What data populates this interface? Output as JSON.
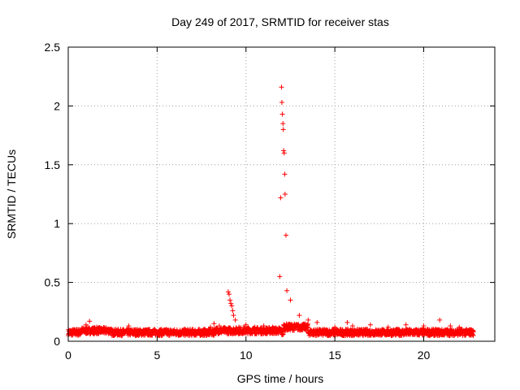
{
  "chart_data": {
    "type": "scatter",
    "title": "Day 249 of 2017, SRMTID for receiver stas",
    "xlabel": "GPS time / hours",
    "ylabel": "SRMTID / TECUs",
    "xlim": [
      0,
      24
    ],
    "ylim": [
      0,
      2.5
    ],
    "xticks": [
      0,
      5,
      10,
      15,
      20
    ],
    "xtick_labels": [
      "0",
      "5",
      "10",
      "15",
      "20"
    ],
    "yticks": [
      0,
      0.5,
      1,
      1.5,
      2,
      2.5
    ],
    "ytick_labels": [
      "0",
      "0.5",
      "1",
      "1.5",
      "2",
      "2.5"
    ],
    "grid": true,
    "marker": "+",
    "color": "#ff0000",
    "baseline_range_hours": [
      0,
      22.8
    ],
    "series": [
      {
        "name": "SRMTID",
        "x": [
          0.1,
          0.5,
          1.0,
          1.2,
          1.6,
          2.0,
          3.4,
          4.2,
          5.0,
          6.0,
          7.0,
          8.0,
          8.2,
          8.5,
          9.0,
          9.05,
          9.1,
          9.15,
          9.2,
          9.25,
          9.3,
          9.4,
          9.6,
          10.0,
          10.5,
          11.0,
          11.5,
          11.9,
          11.95,
          12.0,
          12.02,
          12.05,
          12.08,
          12.1,
          12.12,
          12.15,
          12.18,
          12.2,
          12.25,
          12.3,
          12.5,
          13.0,
          13.5,
          14.0,
          15.0,
          15.7,
          16.0,
          17.0,
          18.0,
          19.0,
          20.0,
          20.9,
          21.5,
          22.0,
          22.8
        ],
        "y": [
          0.07,
          0.1,
          0.14,
          0.17,
          0.12,
          0.1,
          0.13,
          0.09,
          0.07,
          0.08,
          0.09,
          0.12,
          0.15,
          0.13,
          0.42,
          0.4,
          0.35,
          0.32,
          0.3,
          0.26,
          0.22,
          0.18,
          0.12,
          0.14,
          0.12,
          0.13,
          0.12,
          0.55,
          1.22,
          2.16,
          2.03,
          1.93,
          1.85,
          1.8,
          1.62,
          1.6,
          1.42,
          1.25,
          0.9,
          0.43,
          0.35,
          0.22,
          0.18,
          0.16,
          0.12,
          0.16,
          0.13,
          0.14,
          0.12,
          0.14,
          0.13,
          0.18,
          0.13,
          0.12,
          0.08
        ]
      }
    ]
  }
}
